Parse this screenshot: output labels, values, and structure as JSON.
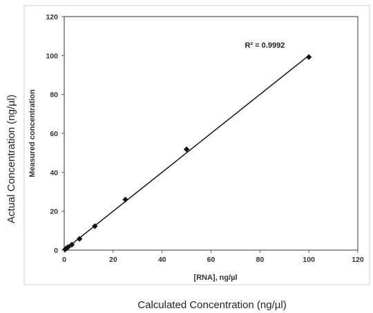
{
  "outer_labels": {
    "xlabel": "Calculated Concentration (ng/µl)",
    "ylabel": "Actual Concentration (ng/µl)"
  },
  "chart_data": {
    "type": "scatter",
    "title": "",
    "xlabel": "[RNA], ng/µl",
    "ylabel": "Measured concentration",
    "xlim": [
      0,
      120
    ],
    "ylim": [
      0,
      120
    ],
    "xticks": [
      0,
      20,
      40,
      60,
      80,
      100,
      120
    ],
    "yticks": [
      0,
      20,
      40,
      60,
      80,
      100,
      120
    ],
    "grid": false,
    "series": [
      {
        "marker": "diamond",
        "color": "#111111",
        "x": [
          0.4,
          0.8,
          1.6,
          3.1,
          6.25,
          12.5,
          25,
          50,
          100
        ],
        "y": [
          0.4,
          0.9,
          1.6,
          2.8,
          5.8,
          12.3,
          26.0,
          51.8,
          99.2
        ]
      }
    ],
    "trendline": {
      "type": "linear",
      "x": [
        0,
        100
      ],
      "y": [
        0,
        100
      ]
    },
    "annotation": {
      "text": "R² = 0.9992",
      "x": 82,
      "y": 104
    }
  }
}
